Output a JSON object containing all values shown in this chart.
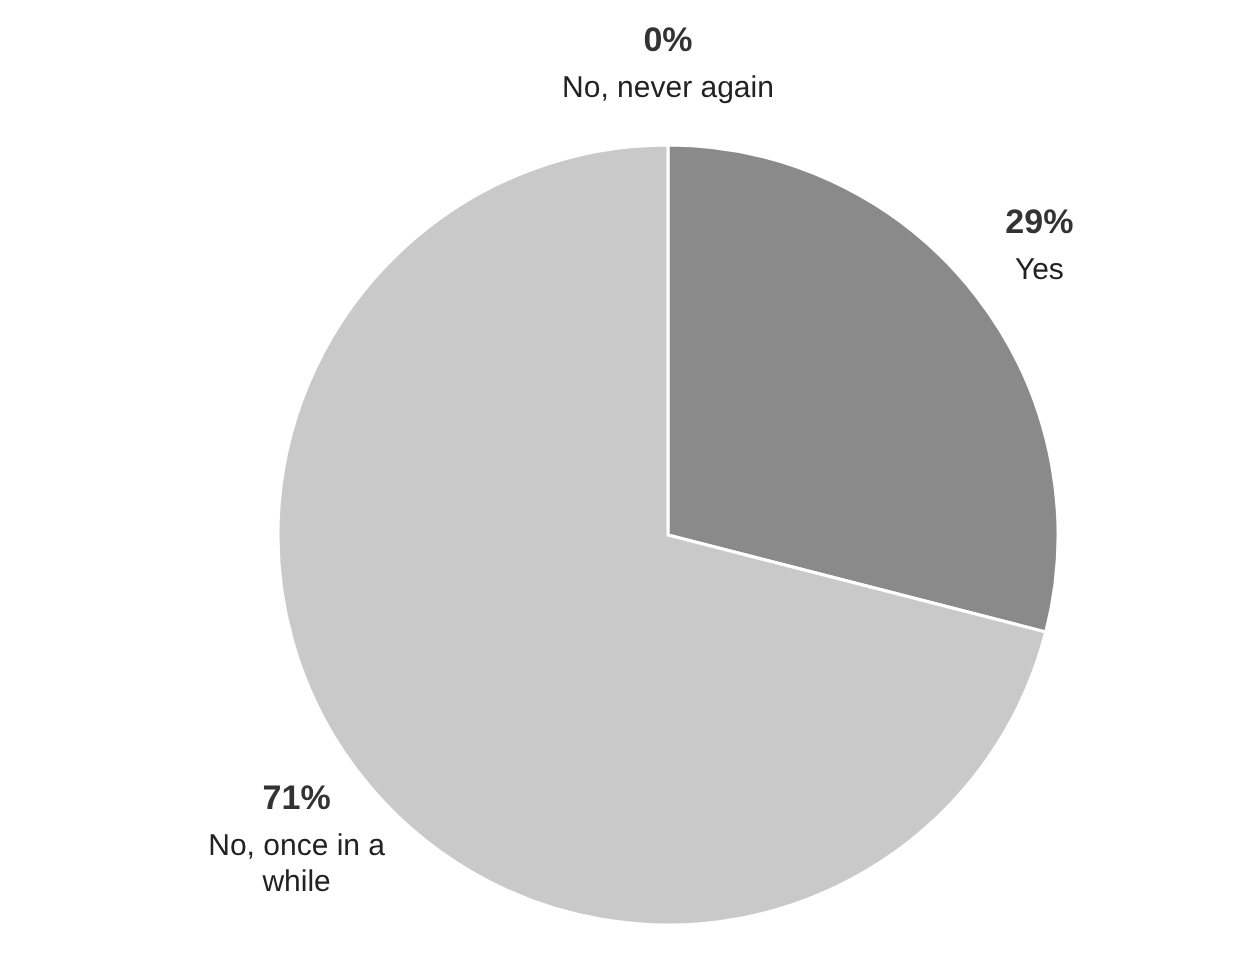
{
  "chart_data": {
    "type": "pie",
    "categories": [
      "No, never again",
      "Yes",
      "No, once in a while"
    ],
    "values": [
      0,
      29,
      71
    ],
    "value_labels": [
      "0%",
      "29%",
      "71%"
    ],
    "colors": [
      "#555555",
      "#8a8a8a",
      "#c9c9c9"
    ],
    "legend": false
  }
}
